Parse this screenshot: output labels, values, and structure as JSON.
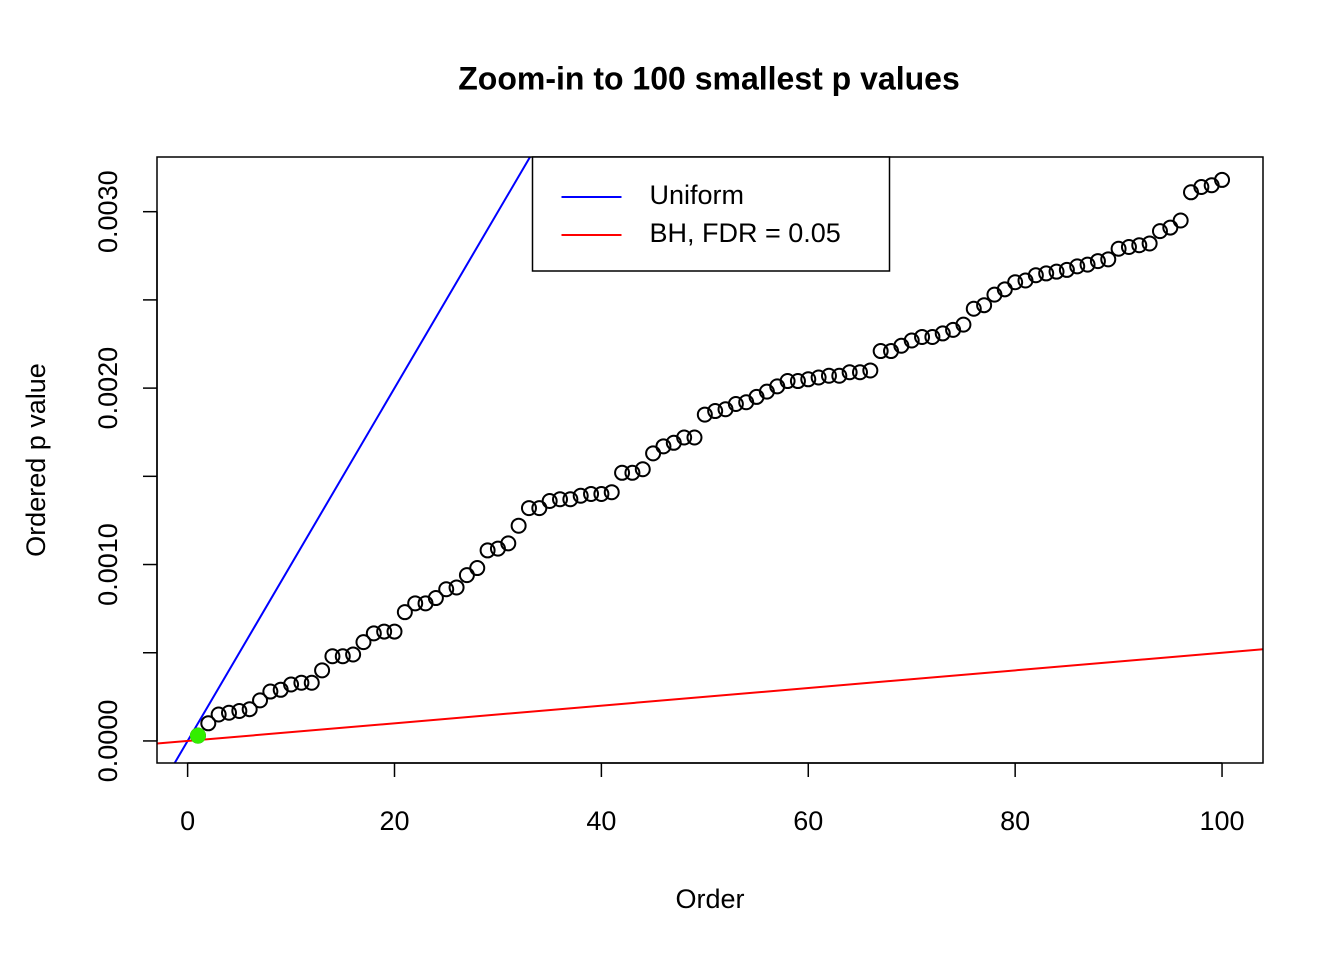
{
  "chart_data": {
    "type": "scatter",
    "title": "Zoom-in to 100 smallest p values",
    "x_label": "Order",
    "y_label": "Ordered p value",
    "xlim": [
      -2.96,
      103.96
    ],
    "ylim": [
      -0.000125,
      0.00331
    ],
    "xticks": [
      0,
      20,
      40,
      60,
      80,
      100
    ],
    "yticks": [
      {
        "value": 0,
        "label": "0.0000"
      },
      {
        "value": 0.0005
      },
      {
        "value": 0.001,
        "label": "0.0010"
      },
      {
        "value": 0.0015
      },
      {
        "value": 0.002,
        "label": "0.0020"
      },
      {
        "value": 0.0025
      },
      {
        "value": 0.003,
        "label": "0.0030"
      }
    ],
    "legend_position": "top",
    "lines": [
      {
        "name": "Uniform",
        "color": "#0000ff",
        "intercept": 0,
        "slope": 0.0001
      },
      {
        "name": "BH, FDR = 0.05",
        "color": "#ff0000",
        "intercept": 0,
        "slope": 5e-06
      }
    ],
    "series": [
      {
        "color": "#000000",
        "filled": false,
        "x": [
          1,
          2,
          3,
          4,
          5,
          6,
          7,
          8,
          9,
          10,
          11,
          12,
          13,
          14,
          15,
          16,
          17,
          18,
          19,
          20,
          21,
          22,
          23,
          24,
          25,
          26,
          27,
          28,
          29,
          30,
          31,
          32,
          33,
          34,
          35,
          36,
          37,
          38,
          39,
          40,
          41,
          42,
          43,
          44,
          45,
          46,
          47,
          48,
          49,
          50,
          51,
          52,
          53,
          54,
          55,
          56,
          57,
          58,
          59,
          60,
          61,
          62,
          63,
          64,
          65,
          66,
          67,
          68,
          69,
          70,
          71,
          72,
          73,
          74,
          75,
          76,
          77,
          78,
          79,
          80,
          81,
          82,
          83,
          84,
          85,
          86,
          87,
          88,
          89,
          90,
          91,
          92,
          93,
          94,
          95,
          96,
          97,
          98,
          99,
          100
        ],
        "values": [
          3e-05,
          0.0001,
          0.00015,
          0.00016,
          0.00017,
          0.00018,
          0.00023,
          0.00028,
          0.00029,
          0.00032,
          0.00033,
          0.00033,
          0.0004,
          0.00048,
          0.00048,
          0.00049,
          0.00056,
          0.00061,
          0.00062,
          0.00062,
          0.00073,
          0.00078,
          0.00078,
          0.00081,
          0.00086,
          0.00087,
          0.00094,
          0.00098,
          0.00108,
          0.00109,
          0.00112,
          0.00122,
          0.00132,
          0.00132,
          0.00136,
          0.00137,
          0.00137,
          0.00139,
          0.0014,
          0.0014,
          0.00141,
          0.00152,
          0.00152,
          0.00154,
          0.00163,
          0.00167,
          0.00169,
          0.00172,
          0.00172,
          0.00185,
          0.00187,
          0.00188,
          0.00191,
          0.00192,
          0.00195,
          0.00198,
          0.00201,
          0.00204,
          0.00204,
          0.00205,
          0.00206,
          0.00207,
          0.00207,
          0.00209,
          0.00209,
          0.0021,
          0.00221,
          0.00221,
          0.00224,
          0.00227,
          0.00229,
          0.00229,
          0.00231,
          0.00233,
          0.00236,
          0.00245,
          0.00247,
          0.00253,
          0.00256,
          0.0026,
          0.00261,
          0.00264,
          0.00265,
          0.00266,
          0.00267,
          0.00269,
          0.0027,
          0.00272,
          0.00273,
          0.00279,
          0.0028,
          0.00281,
          0.00282,
          0.00289,
          0.00291,
          0.00295,
          0.00311,
          0.00314,
          0.00315,
          0.00318
        ]
      },
      {
        "color": "#33ee00",
        "filled": true,
        "x": [
          1
        ],
        "values": [
          3e-05
        ]
      }
    ]
  }
}
